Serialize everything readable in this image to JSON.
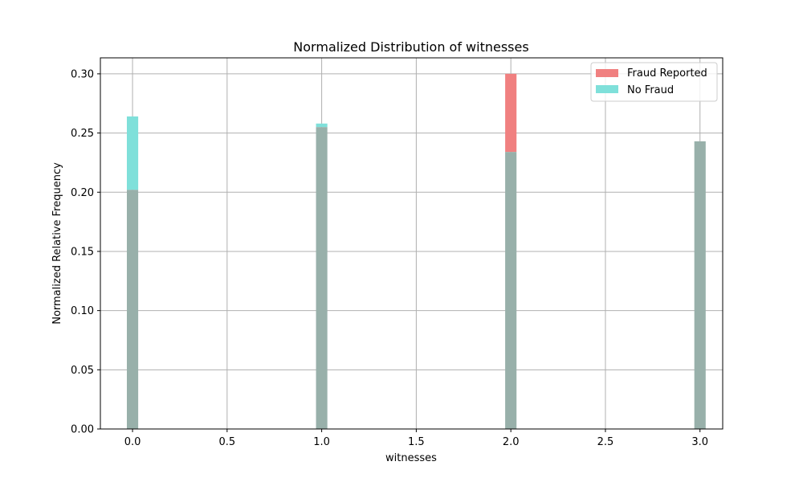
{
  "chart_data": {
    "type": "bar",
    "title": "Normalized Distribution of witnesses",
    "xlabel": "witnesses",
    "ylabel": "Normalized Relative Frequency",
    "x": [
      0,
      1,
      2,
      3
    ],
    "series": [
      {
        "name": "Fraud Reported",
        "color": "#f08080",
        "values": [
          0.202,
          0.255,
          0.3,
          0.243
        ]
      },
      {
        "name": "No Fraud",
        "color": "#7fe0da",
        "values": [
          0.264,
          0.258,
          0.234,
          0.243
        ]
      }
    ],
    "overlap_color": "#98b0aa",
    "xlim": [
      -0.17,
      3.12
    ],
    "ylim": [
      0,
      0.3135
    ],
    "xticks": [
      0.0,
      0.5,
      1.0,
      1.5,
      2.0,
      2.5,
      3.0
    ],
    "xtick_labels": [
      "0.0",
      "0.5",
      "1.0",
      "1.5",
      "2.0",
      "2.5",
      "3.0"
    ],
    "yticks": [
      0,
      0.05,
      0.1,
      0.15,
      0.2,
      0.25,
      0.3
    ],
    "ytick_labels": [
      "0.00",
      "0.05",
      "0.10",
      "0.15",
      "0.20",
      "0.25",
      "0.30"
    ],
    "bin_width": 0.06,
    "grid": true,
    "legend_position": "top-right"
  }
}
